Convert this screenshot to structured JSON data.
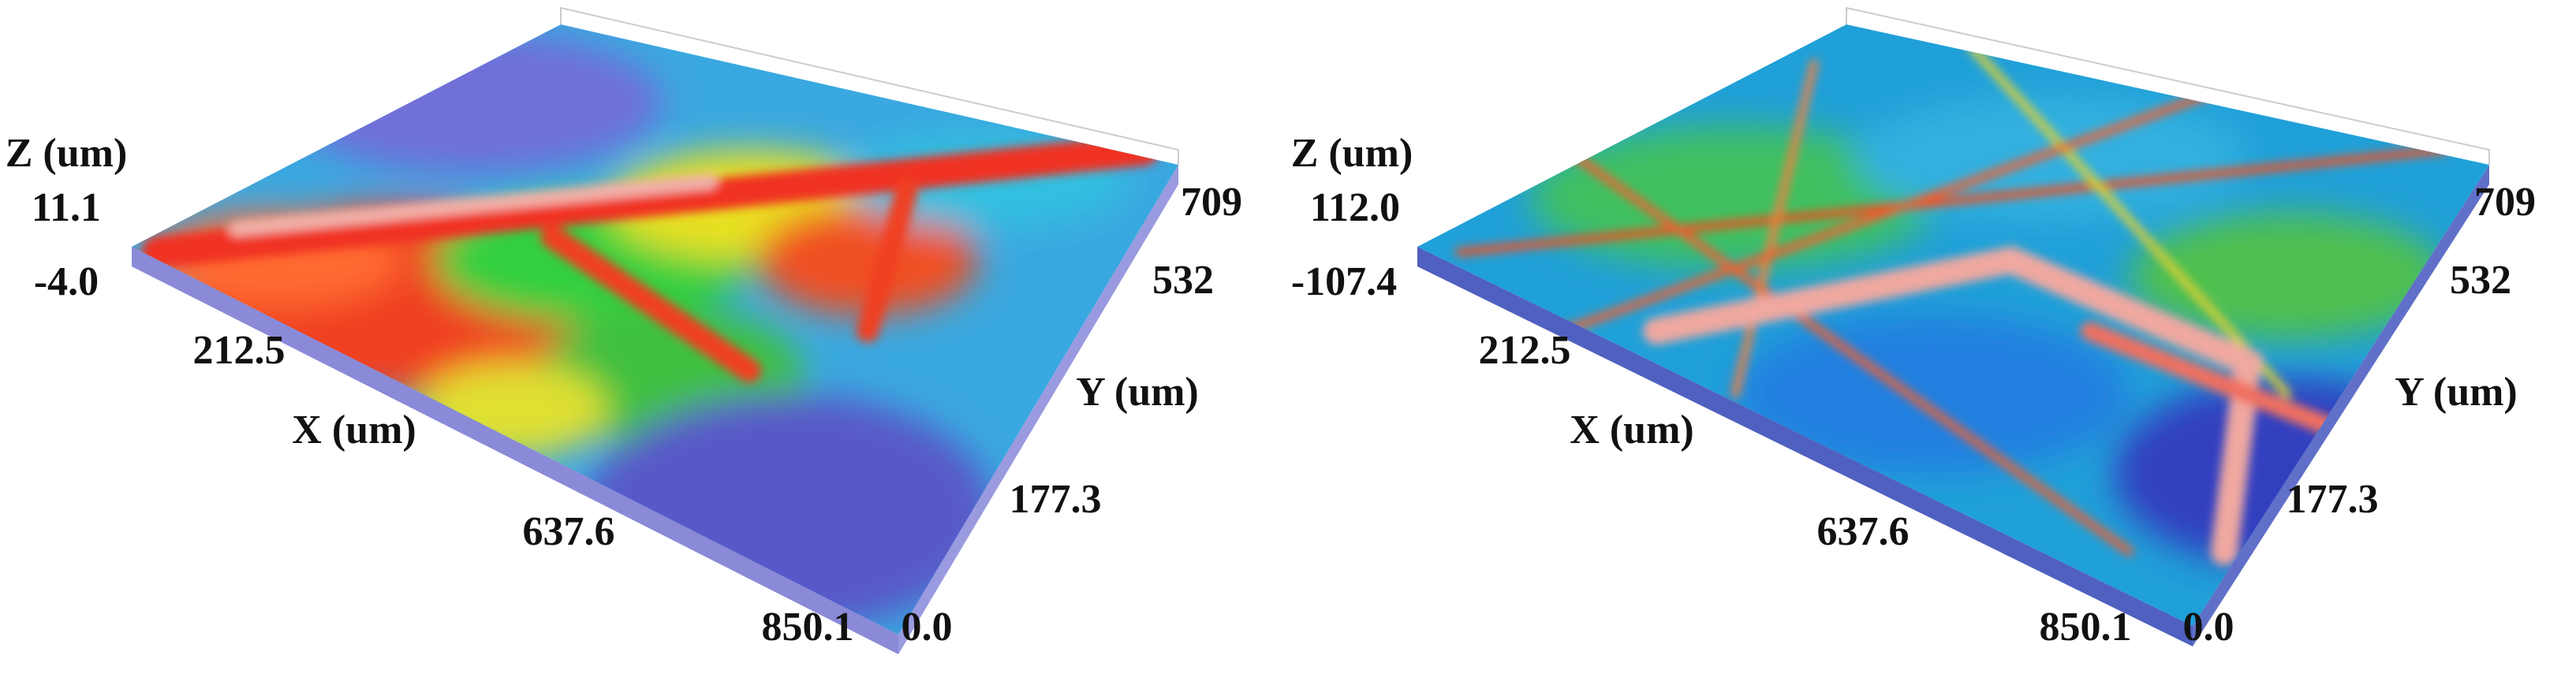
{
  "panels": [
    {
      "z_label": "Z (um)",
      "z_max": "11.1",
      "z_min": "-4.0",
      "x_tick_1": "212.5",
      "x_label": "X (um)",
      "x_tick_2": "637.6",
      "x_max": "850.1",
      "origin": "0.0",
      "y_tick_1": "177.3",
      "y_label": "Y (um)",
      "y_tick_2": "532",
      "y_max": "709"
    },
    {
      "z_label": "Z (um)",
      "z_max": "112.0",
      "z_min": "-107.4",
      "x_tick_1": "212.5",
      "x_label": "X (um)",
      "x_tick_2": "637.6",
      "x_max": "850.1",
      "origin": "0.0",
      "y_tick_1": "177.3",
      "y_label": "Y (um)",
      "y_tick_2": "532",
      "y_max": "709"
    }
  ]
}
